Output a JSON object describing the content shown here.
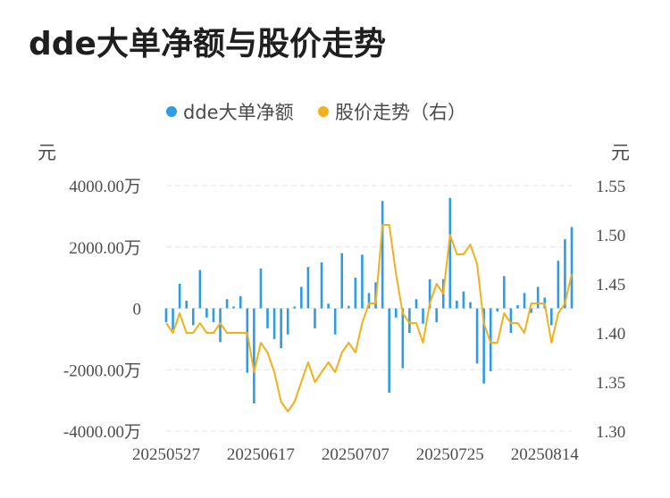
{
  "title": "dde大单净额与股价走势",
  "legend": [
    {
      "label": "dde大单净额",
      "color": "#2e9be6"
    },
    {
      "label": "股价走势（右）",
      "color": "#f2b11c"
    }
  ],
  "left_unit": "元",
  "right_unit": "元",
  "chart_data": {
    "type": "bar+line",
    "x_tick_labels": [
      "20250527",
      "20250617",
      "20250707",
      "20250725",
      "20250814"
    ],
    "x_tick_indices": [
      0,
      14,
      28,
      42,
      56
    ],
    "left_axis": {
      "ticks": [
        4000,
        2000,
        0,
        -2000,
        -4000
      ],
      "tick_labels": [
        "4000.00万",
        "2000.00万",
        "0",
        "-2000.00万",
        "-4000.00万"
      ],
      "ylim": [
        -4000,
        4000
      ]
    },
    "right_axis": {
      "ticks": [
        1.55,
        1.5,
        1.45,
        1.4,
        1.35,
        1.3
      ],
      "tick_labels": [
        "1.55",
        "1.50",
        "1.45",
        "1.40",
        "1.35",
        "1.30"
      ],
      "ylim": [
        1.3,
        1.55
      ]
    },
    "grid": true,
    "legend_position": "top-center",
    "series": [
      {
        "name": "dde大单净额",
        "type": "bar",
        "color": "#2e9be6",
        "values": [
          -450,
          -700,
          800,
          250,
          -550,
          1250,
          -300,
          -450,
          -1100,
          300,
          60,
          400,
          -2100,
          -3100,
          1300,
          -650,
          -1000,
          -1300,
          -850,
          60,
          700,
          1350,
          -650,
          1500,
          150,
          -850,
          1800,
          80,
          1000,
          1750,
          500,
          850,
          3500,
          -2750,
          -300,
          -1950,
          -800,
          300,
          -500,
          950,
          -450,
          950,
          3600,
          250,
          550,
          200,
          -1800,
          -2450,
          -2050,
          -100,
          1050,
          -800,
          100,
          500,
          -150,
          700,
          350,
          -550,
          1550,
          2250,
          2650
        ]
      },
      {
        "name": "股价走势（右）",
        "type": "line",
        "color": "#f2b11c",
        "values": [
          1.41,
          1.4,
          1.42,
          1.4,
          1.4,
          1.41,
          1.4,
          1.4,
          1.41,
          1.4,
          1.4,
          1.4,
          1.4,
          1.36,
          1.39,
          1.38,
          1.36,
          1.33,
          1.32,
          1.33,
          1.35,
          1.37,
          1.35,
          1.36,
          1.37,
          1.36,
          1.38,
          1.39,
          1.38,
          1.41,
          1.43,
          1.43,
          1.51,
          1.51,
          1.46,
          1.42,
          1.41,
          1.41,
          1.39,
          1.43,
          1.45,
          1.44,
          1.5,
          1.48,
          1.48,
          1.49,
          1.47,
          1.41,
          1.39,
          1.39,
          1.42,
          1.41,
          1.41,
          1.4,
          1.43,
          1.43,
          1.43,
          1.39,
          1.42,
          1.43,
          1.46
        ]
      }
    ]
  }
}
